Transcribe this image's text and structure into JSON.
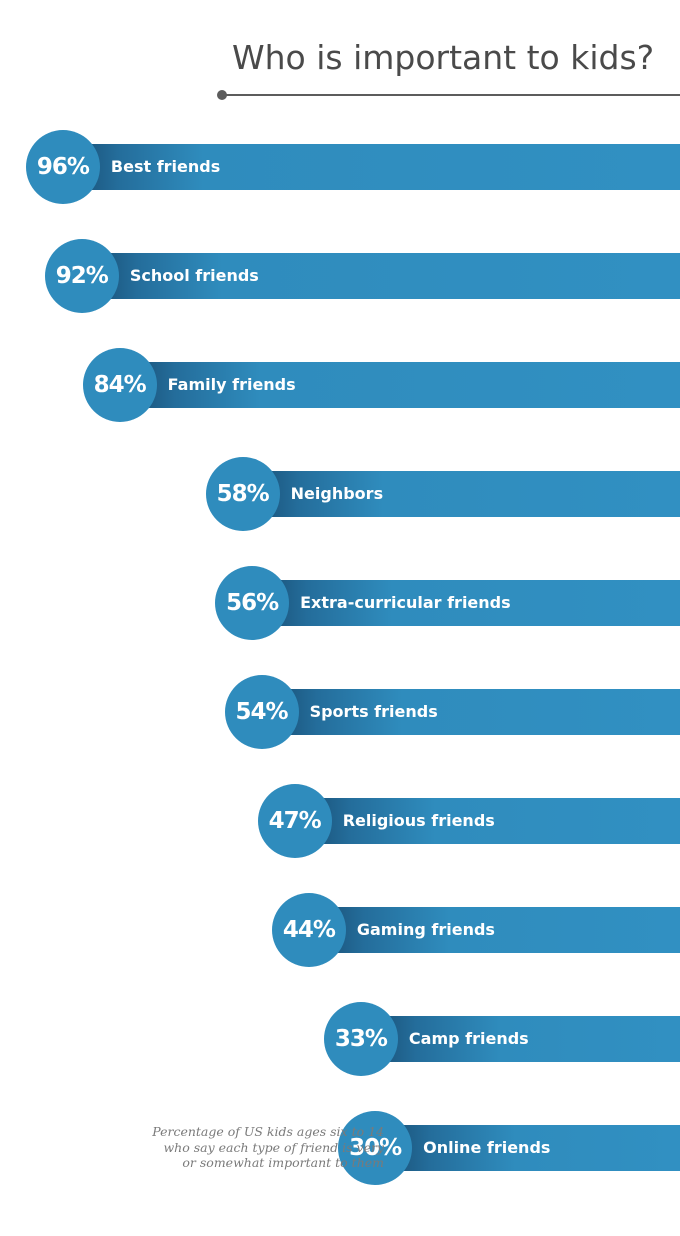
{
  "title": "Who is important to kids?",
  "caption_lines": [
    "Percentage  of US kids ages six to 14",
    "who say each type of friend is very",
    "or somewhat  important to them"
  ],
  "colors": {
    "bar": "#3190c2",
    "bar_dark": "#174a6e",
    "circle": "#2f8cbd",
    "title": "#4a4a4a",
    "caption": "#7a7a7a"
  },
  "chart_data": {
    "type": "bar",
    "orientation": "horizontal",
    "title": "Who is important to kids?",
    "categories": [
      "Best friends",
      "School friends",
      "Family friends",
      "Neighbors",
      "Extra-curricular friends",
      "Sports friends",
      "Religious friends",
      "Gaming friends",
      "Camp friends",
      "Online friends"
    ],
    "values": [
      96,
      92,
      84,
      58,
      56,
      54,
      47,
      44,
      33,
      30
    ],
    "value_labels": [
      "96%",
      "92%",
      "84%",
      "58%",
      "56%",
      "54%",
      "47%",
      "44%",
      "33%",
      "30%"
    ],
    "unit": "%",
    "xlim": [
      0,
      100
    ]
  }
}
